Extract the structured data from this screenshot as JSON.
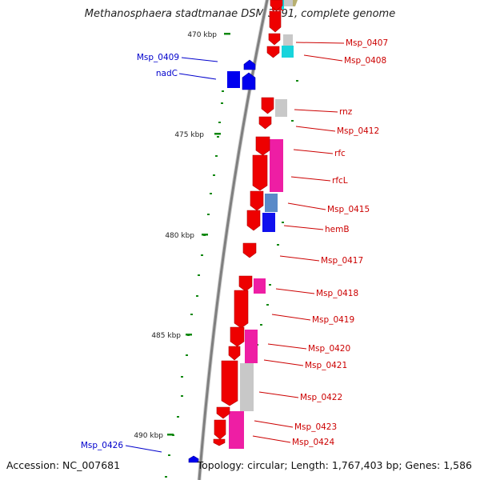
{
  "title": "Methanosphaera stadtmanae DSM 3091, complete genome",
  "accession_text": "Accession: NC_007681",
  "summary_text": "Topology: circular; Length: 1,767,403 bp; Genes: 1,586",
  "colors": {
    "backbone": "#7f7f7f",
    "forward_gene": "#ee0000",
    "reverse_gene": "#0000ee",
    "forward_label": "#cc0000",
    "reverse_label": "#0000cc",
    "tick": "#118811",
    "cog_magenta": "#ee1ea4",
    "cog_gray": "#c8c8c8",
    "cog_cyan": "#18d4dc",
    "cog_steelblue": "#5a8ac8",
    "cog_blue": "#1010ee"
  },
  "scale_ticks": [
    "470 kbp",
    "475 kbp",
    "480 kbp",
    "485 kbp",
    "490 kbp"
  ],
  "gene_labels": [
    {
      "text": "Msp_0407",
      "strand": "forward"
    },
    {
      "text": "Msp_0408",
      "strand": "forward"
    },
    {
      "text": "Msp_0409",
      "strand": "reverse"
    },
    {
      "text": "nadC",
      "strand": "reverse"
    },
    {
      "text": "rnz",
      "strand": "forward"
    },
    {
      "text": "Msp_0412",
      "strand": "forward"
    },
    {
      "text": "rfc",
      "strand": "forward"
    },
    {
      "text": "rfcL",
      "strand": "forward"
    },
    {
      "text": "Msp_0415",
      "strand": "forward"
    },
    {
      "text": "hemB",
      "strand": "forward"
    },
    {
      "text": "Msp_0417",
      "strand": "forward"
    },
    {
      "text": "Msp_0418",
      "strand": "forward"
    },
    {
      "text": "Msp_0419",
      "strand": "forward"
    },
    {
      "text": "Msp_0420",
      "strand": "forward"
    },
    {
      "text": "Msp_0421",
      "strand": "forward"
    },
    {
      "text": "Msp_0422",
      "strand": "forward"
    },
    {
      "text": "Msp_0423",
      "strand": "forward"
    },
    {
      "text": "Msp_0424",
      "strand": "forward"
    },
    {
      "text": "Msp_0426",
      "strand": "reverse"
    }
  ]
}
